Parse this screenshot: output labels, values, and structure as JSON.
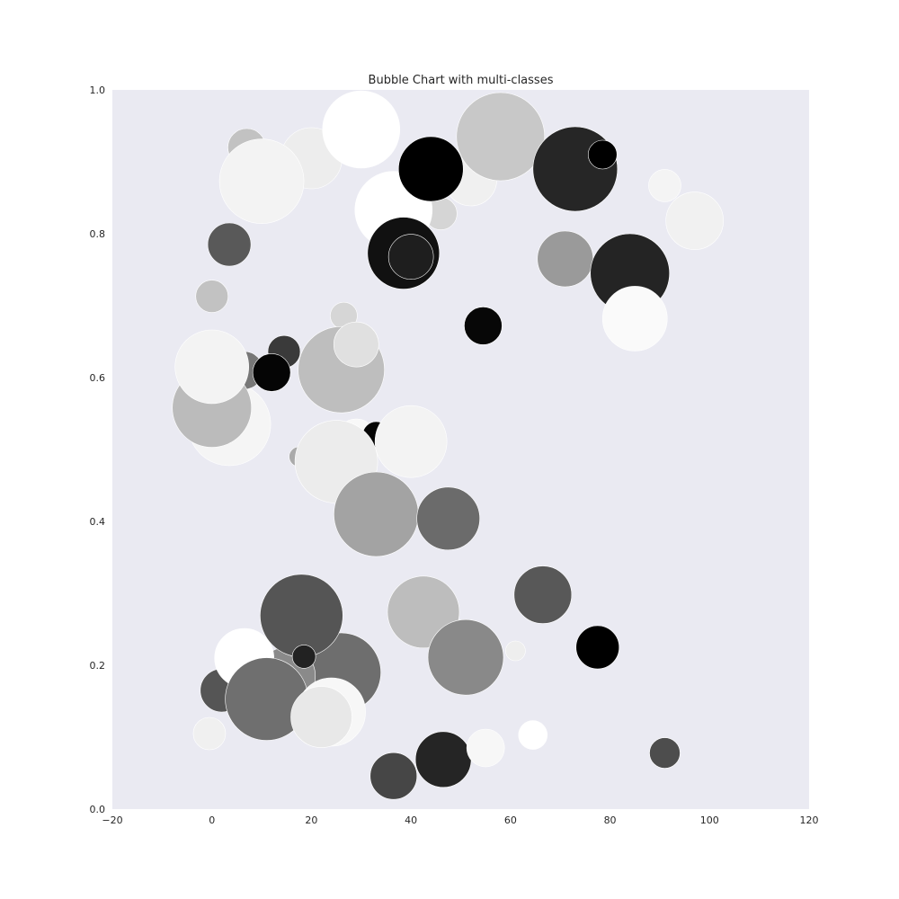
{
  "chart_data": {
    "type": "scatter",
    "title": "Bubble Chart with multi-classes",
    "xlabel": "",
    "ylabel": "",
    "xlim": [
      -20,
      120
    ],
    "ylim": [
      0,
      1
    ],
    "x_ticks": [
      -20,
      0,
      20,
      40,
      60,
      80,
      100,
      120
    ],
    "y_ticks": [
      0.0,
      0.2,
      0.4,
      0.6,
      0.8,
      1.0
    ],
    "x_tick_labels": [
      "−20",
      "0",
      "20",
      "40",
      "60",
      "80",
      "100",
      "120"
    ],
    "y_tick_labels": [
      "0.0",
      "0.2",
      "0.4",
      "0.6",
      "0.8",
      "1.0"
    ],
    "grid": false,
    "legend": "none",
    "colors": {
      "plot_background": "#eaeaf2",
      "figure_background": "#ffffff",
      "text": "#262626"
    },
    "points": [
      {
        "x": 2.0,
        "y": 0.165,
        "r": 24,
        "fill": "#555555"
      },
      {
        "x": 3.5,
        "y": 0.535,
        "r": 46,
        "fill": "#f5f5f5"
      },
      {
        "x": 20.0,
        "y": 0.905,
        "r": 34,
        "fill": "#ededed"
      },
      {
        "x": 12.5,
        "y": 0.845,
        "r": 19,
        "fill": "#888888"
      },
      {
        "x": 52.0,
        "y": 0.875,
        "r": 29,
        "fill": "#f0f0f0"
      },
      {
        "x": 6.5,
        "y": 0.61,
        "r": 21,
        "fill": "#777777"
      },
      {
        "x": 17.5,
        "y": 0.49,
        "r": 11,
        "fill": "#aaaaaa"
      },
      {
        "x": 29.0,
        "y": 0.515,
        "r": 22,
        "fill": "#f8f8f8"
      },
      {
        "x": 33.0,
        "y": 0.52,
        "r": 15,
        "fill": "#050505"
      },
      {
        "x": 37.0,
        "y": 0.38,
        "r": 12,
        "fill": "#1a1a1a"
      },
      {
        "x": 26.0,
        "y": 0.19,
        "r": 44,
        "fill": "#6e6e6e"
      },
      {
        "x": 15.0,
        "y": 0.185,
        "r": 32,
        "fill": "#8a8a8a"
      },
      {
        "x": 6.5,
        "y": 0.21,
        "r": 33,
        "fill": "#ffffff"
      },
      {
        "x": -0.5,
        "y": 0.105,
        "r": 18,
        "fill": "#f0f0f0"
      },
      {
        "x": 61.0,
        "y": 0.22,
        "r": 11,
        "fill": "#eeeeee"
      },
      {
        "x": 30.0,
        "y": 0.945,
        "r": 43,
        "fill": "#ffffff"
      },
      {
        "x": 58.0,
        "y": 0.935,
        "r": 49,
        "fill": "#c8c8c8"
      },
      {
        "x": 7.0,
        "y": 0.92,
        "r": 21,
        "fill": "#c2c2c2"
      },
      {
        "x": 10.0,
        "y": 0.873,
        "r": 47,
        "fill": "#f3f3f3"
      },
      {
        "x": 46.0,
        "y": 0.828,
        "r": 18,
        "fill": "#d5d5d5"
      },
      {
        "x": 36.5,
        "y": 0.833,
        "r": 43,
        "fill": "#ffffff"
      },
      {
        "x": 38.5,
        "y": 0.773,
        "r": 40,
        "fill": "#111111"
      },
      {
        "x": 40.0,
        "y": 0.768,
        "r": 25,
        "fill": "#1e1e1e"
      },
      {
        "x": 44.0,
        "y": 0.89,
        "r": 36,
        "fill": "#000000"
      },
      {
        "x": 73.0,
        "y": 0.89,
        "r": 47,
        "fill": "#262626"
      },
      {
        "x": 78.5,
        "y": 0.91,
        "r": 16,
        "fill": "#000000"
      },
      {
        "x": 91.0,
        "y": 0.867,
        "r": 18,
        "fill": "#f4f4f4"
      },
      {
        "x": 97.0,
        "y": 0.818,
        "r": 32,
        "fill": "#f1f1f1"
      },
      {
        "x": 3.5,
        "y": 0.785,
        "r": 24,
        "fill": "#595959"
      },
      {
        "x": 71.0,
        "y": 0.765,
        "r": 31,
        "fill": "#9a9a9a"
      },
      {
        "x": 84.0,
        "y": 0.745,
        "r": 44,
        "fill": "#242424"
      },
      {
        "x": 85.0,
        "y": 0.682,
        "r": 36,
        "fill": "#fafafa"
      },
      {
        "x": 0.0,
        "y": 0.713,
        "r": 18,
        "fill": "#c2c2c2"
      },
      {
        "x": 26.5,
        "y": 0.686,
        "r": 15,
        "fill": "#d6d6d6"
      },
      {
        "x": 54.5,
        "y": 0.672,
        "r": 21,
        "fill": "#070707"
      },
      {
        "x": 14.5,
        "y": 0.636,
        "r": 18,
        "fill": "#3a3a3a"
      },
      {
        "x": 12.0,
        "y": 0.607,
        "r": 21,
        "fill": "#050505"
      },
      {
        "x": 26.0,
        "y": 0.611,
        "r": 48,
        "fill": "#bebebe"
      },
      {
        "x": 29.0,
        "y": 0.646,
        "r": 25,
        "fill": "#e0e0e0"
      },
      {
        "x": 0.0,
        "y": 0.558,
        "r": 44,
        "fill": "#bbbbbb"
      },
      {
        "x": 0.0,
        "y": 0.615,
        "r": 41,
        "fill": "#f3f3f3"
      },
      {
        "x": 25.0,
        "y": 0.483,
        "r": 46,
        "fill": "#ececec"
      },
      {
        "x": 40.0,
        "y": 0.511,
        "r": 40,
        "fill": "#f3f3f3"
      },
      {
        "x": 33.0,
        "y": 0.41,
        "r": 47,
        "fill": "#a3a3a3"
      },
      {
        "x": 47.5,
        "y": 0.404,
        "r": 35,
        "fill": "#6b6b6b"
      },
      {
        "x": 18.0,
        "y": 0.269,
        "r": 46,
        "fill": "#555555"
      },
      {
        "x": 42.5,
        "y": 0.274,
        "r": 40,
        "fill": "#bdbdbd"
      },
      {
        "x": 66.5,
        "y": 0.298,
        "r": 32,
        "fill": "#585858"
      },
      {
        "x": 77.5,
        "y": 0.225,
        "r": 24,
        "fill": "#000000"
      },
      {
        "x": 18.5,
        "y": 0.212,
        "r": 13,
        "fill": "#222222"
      },
      {
        "x": 51.0,
        "y": 0.211,
        "r": 42,
        "fill": "#898989"
      },
      {
        "x": 11.0,
        "y": 0.153,
        "r": 46,
        "fill": "#6f6f6f"
      },
      {
        "x": 24.0,
        "y": 0.135,
        "r": 38,
        "fill": "#f7f7f7"
      },
      {
        "x": 22.0,
        "y": 0.128,
        "r": 34,
        "fill": "#e8e8e8"
      },
      {
        "x": 36.5,
        "y": 0.046,
        "r": 26,
        "fill": "#464646"
      },
      {
        "x": 46.5,
        "y": 0.069,
        "r": 31,
        "fill": "#252525"
      },
      {
        "x": 55.0,
        "y": 0.085,
        "r": 21,
        "fill": "#f7f7f7"
      },
      {
        "x": 64.5,
        "y": 0.103,
        "r": 16,
        "fill": "#ffffff"
      },
      {
        "x": 91.0,
        "y": 0.078,
        "r": 17,
        "fill": "#4d4d4d"
      }
    ]
  }
}
